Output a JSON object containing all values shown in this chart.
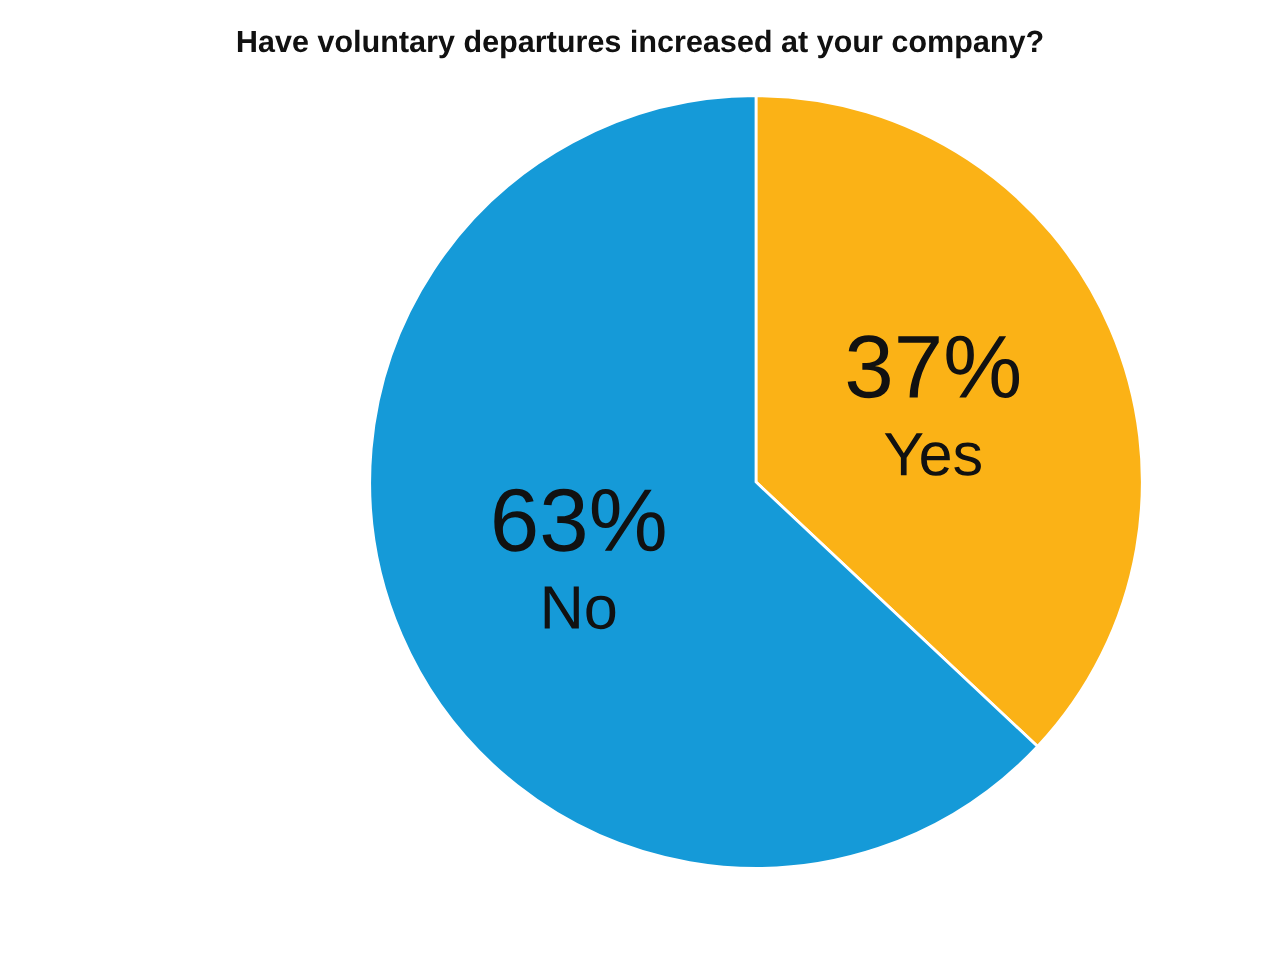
{
  "chart_data": {
    "type": "pie",
    "title": "Have voluntary departures increased at your company?",
    "categories": [
      "Yes",
      "No"
    ],
    "values": [
      37,
      63
    ],
    "colors": [
      "#fbb216",
      "#159ad8"
    ],
    "value_labels": [
      "37%",
      "63%"
    ]
  }
}
